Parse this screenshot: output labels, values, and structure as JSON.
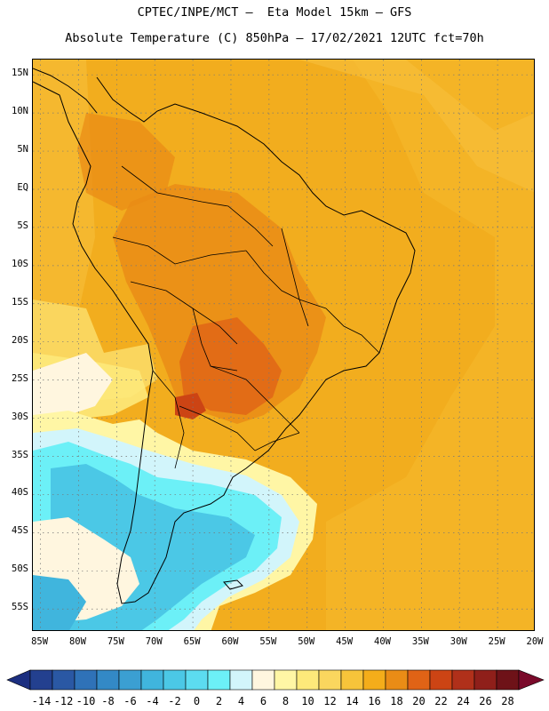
{
  "header": {
    "line1": "CPTEC/INPE/MCT –  Eta Model 15km – GFS",
    "line2": "Absolute Temperature (C) 850hPa – 17/02/2021 12UTC fct=70h"
  },
  "map": {
    "lat_labels": [
      "15N",
      "10N",
      "5N",
      "EQ",
      "5S",
      "10S",
      "15S",
      "20S",
      "25S",
      "30S",
      "35S",
      "40S",
      "45S",
      "50S",
      "55S"
    ],
    "lat_values": [
      15,
      10,
      5,
      0,
      -5,
      -10,
      -15,
      -20,
      -25,
      -30,
      -35,
      -40,
      -45,
      -50,
      -55
    ],
    "lon_labels": [
      "85W",
      "80W",
      "75W",
      "70W",
      "65W",
      "60W",
      "55W",
      "50W",
      "45W",
      "40W",
      "35W",
      "30W",
      "25W",
      "20W"
    ],
    "lon_values": [
      -85,
      -80,
      -75,
      -70,
      -65,
      -60,
      -55,
      -50,
      -45,
      -40,
      -35,
      -30,
      -25,
      -20
    ],
    "lat_range": [
      -58,
      17
    ],
    "lon_range": [
      -86,
      -20
    ]
  },
  "colorbar": {
    "ticks": [
      "-14",
      "-12",
      "-10",
      "-8",
      "-6",
      "-4",
      "-2",
      "0",
      "2",
      "4",
      "6",
      "8",
      "10",
      "12",
      "14",
      "16",
      "18",
      "20",
      "22",
      "24",
      "26",
      "28"
    ],
    "colors": [
      "#23408f",
      "#2a58a4",
      "#2f72b8",
      "#3389c6",
      "#3b9fd2",
      "#40b5dd",
      "#4bc8e6",
      "#5cdcf0",
      "#6cf0f7",
      "#d2f5fb",
      "#fff6df",
      "#fff6a5",
      "#fde97a",
      "#fad65e",
      "#f7c43a",
      "#f4ad1a",
      "#ea8c16",
      "#e06316",
      "#cc4414",
      "#b0301a",
      "#8f1f1a",
      "#6e1218"
    ],
    "under_color": "#1c2f80",
    "over_color": "#7a0a2a",
    "unit": "C"
  }
}
